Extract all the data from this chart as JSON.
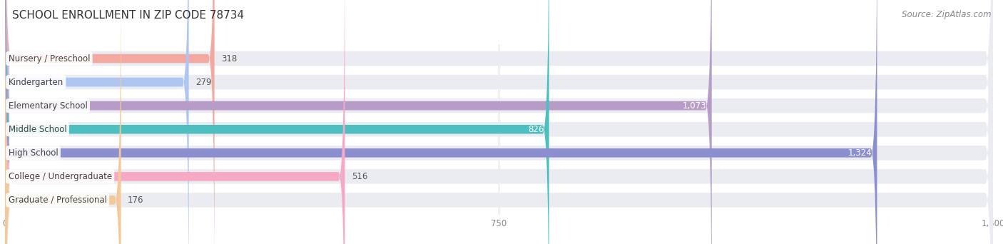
{
  "title": "SCHOOL ENROLLMENT IN ZIP CODE 78734",
  "source": "Source: ZipAtlas.com",
  "categories": [
    "Nursery / Preschool",
    "Kindergarten",
    "Elementary School",
    "Middle School",
    "High School",
    "College / Undergraduate",
    "Graduate / Professional"
  ],
  "values": [
    318,
    279,
    1073,
    826,
    1324,
    516,
    176
  ],
  "bar_colors": [
    "#f4a9a0",
    "#aec6ef",
    "#b79cc8",
    "#4dbfbf",
    "#8b8fcf",
    "#f7a8c4",
    "#f5c897"
  ],
  "bar_bg_color": "#ebebf2",
  "xlim": [
    0,
    1500
  ],
  "xticks": [
    0,
    750,
    1500
  ],
  "title_fontsize": 11,
  "source_fontsize": 8.5,
  "label_fontsize": 8.5,
  "value_fontsize": 8.5,
  "background_color": "#ffffff",
  "value_inside_threshold": 750
}
